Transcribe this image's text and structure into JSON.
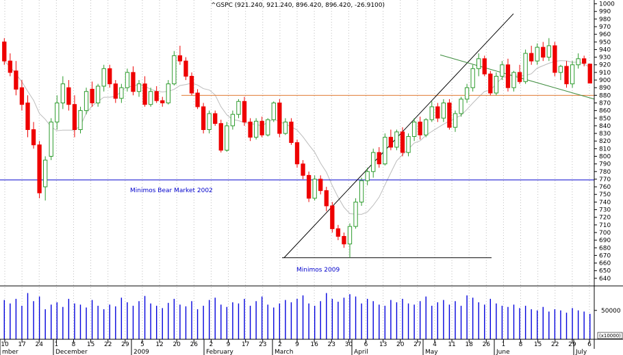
{
  "chart_data": {
    "type": "candlestick",
    "title": "^GSPC (921.240, 921.240, 896.420, 896.420, -26.9100)",
    "price_axis": {
      "ylim": [
        630,
        1005
      ],
      "ticks": [
        640,
        650,
        660,
        670,
        680,
        690,
        700,
        710,
        720,
        730,
        740,
        750,
        760,
        770,
        780,
        790,
        800,
        810,
        820,
        830,
        840,
        850,
        860,
        870,
        880,
        890,
        900,
        910,
        920,
        930,
        940,
        950,
        960,
        970,
        980,
        990,
        1000
      ]
    },
    "volume_axis": {
      "ylim": [
        0,
        90000
      ],
      "tick_labels": [
        "50000"
      ],
      "unit_label": "(x10000)"
    },
    "x_tick_labels": [
      "10",
      "17",
      "24",
      "1",
      "8",
      "15",
      "22",
      "29",
      "5",
      "12",
      "20",
      "26",
      "2",
      "9",
      "17",
      "23",
      "2",
      "9",
      "16",
      "23",
      "30",
      "6",
      "13",
      "20",
      "27",
      "4",
      "11",
      "18",
      "26",
      "1",
      "8",
      "15",
      "22",
      "29",
      "6"
    ],
    "month_labels": [
      "mber",
      "December",
      "2009",
      "February",
      "March",
      "April",
      "May",
      "June",
      "July"
    ],
    "colors": {
      "up": "#2a9a2a",
      "down": "#ee0000",
      "moving_average": "#bbbbbb",
      "volume": "#0000dd"
    },
    "horizontal_lines": [
      {
        "value": 769,
        "color": "#0000cc",
        "label": "Minimos Bear Market 2002"
      },
      {
        "value": 880,
        "color": "#e07830",
        "label": ""
      },
      {
        "value": 667,
        "color": "#000000",
        "label": "Minimos 2009"
      }
    ],
    "trendlines": [
      {
        "color": "#000000",
        "from": {
          "bar": 0.655,
          "value": 667
        },
        "to": {
          "bar": 1.0,
          "value": 987
        }
      },
      {
        "color": "#3a8a3a",
        "from": {
          "bar": 0.0,
          "value": 933
        },
        "to": {
          "bar": 1.0,
          "value": 875
        }
      }
    ],
    "candles": [
      {
        "o": 950,
        "h": 955,
        "l": 920,
        "c": 925
      },
      {
        "o": 925,
        "h": 935,
        "l": 905,
        "c": 910
      },
      {
        "o": 912,
        "h": 925,
        "l": 880,
        "c": 888
      },
      {
        "o": 890,
        "h": 900,
        "l": 860,
        "c": 868
      },
      {
        "o": 870,
        "h": 880,
        "l": 825,
        "c": 835
      },
      {
        "o": 835,
        "h": 845,
        "l": 810,
        "c": 815
      },
      {
        "o": 815,
        "h": 820,
        "l": 745,
        "c": 752
      },
      {
        "o": 760,
        "h": 800,
        "l": 742,
        "c": 795
      },
      {
        "o": 800,
        "h": 850,
        "l": 795,
        "c": 845
      },
      {
        "o": 845,
        "h": 880,
        "l": 835,
        "c": 870
      },
      {
        "o": 870,
        "h": 905,
        "l": 862,
        "c": 895
      },
      {
        "o": 890,
        "h": 900,
        "l": 860,
        "c": 868
      },
      {
        "o": 868,
        "h": 880,
        "l": 825,
        "c": 835
      },
      {
        "o": 835,
        "h": 865,
        "l": 830,
        "c": 860
      },
      {
        "o": 860,
        "h": 890,
        "l": 855,
        "c": 885
      },
      {
        "o": 888,
        "h": 898,
        "l": 865,
        "c": 870
      },
      {
        "o": 870,
        "h": 895,
        "l": 865,
        "c": 892
      },
      {
        "o": 892,
        "h": 920,
        "l": 885,
        "c": 915
      },
      {
        "o": 915,
        "h": 920,
        "l": 890,
        "c": 895
      },
      {
        "o": 895,
        "h": 900,
        "l": 870,
        "c": 876
      },
      {
        "o": 876,
        "h": 895,
        "l": 870,
        "c": 890
      },
      {
        "o": 890,
        "h": 915,
        "l": 885,
        "c": 910
      },
      {
        "o": 910,
        "h": 918,
        "l": 880,
        "c": 885
      },
      {
        "o": 885,
        "h": 900,
        "l": 878,
        "c": 895
      },
      {
        "o": 895,
        "h": 905,
        "l": 865,
        "c": 868
      },
      {
        "o": 868,
        "h": 890,
        "l": 865,
        "c": 885
      },
      {
        "o": 885,
        "h": 892,
        "l": 870,
        "c": 873
      },
      {
        "o": 873,
        "h": 878,
        "l": 865,
        "c": 870
      },
      {
        "o": 870,
        "h": 900,
        "l": 868,
        "c": 895
      },
      {
        "o": 895,
        "h": 938,
        "l": 893,
        "c": 932
      },
      {
        "o": 932,
        "h": 945,
        "l": 920,
        "c": 925
      },
      {
        "o": 925,
        "h": 930,
        "l": 900,
        "c": 905
      },
      {
        "o": 905,
        "h": 910,
        "l": 880,
        "c": 883
      },
      {
        "o": 883,
        "h": 888,
        "l": 862,
        "c": 865
      },
      {
        "o": 865,
        "h": 870,
        "l": 830,
        "c": 835
      },
      {
        "o": 835,
        "h": 860,
        "l": 830,
        "c": 856
      },
      {
        "o": 856,
        "h": 860,
        "l": 840,
        "c": 843
      },
      {
        "o": 843,
        "h": 848,
        "l": 805,
        "c": 808
      },
      {
        "o": 808,
        "h": 845,
        "l": 806,
        "c": 840
      },
      {
        "o": 840,
        "h": 860,
        "l": 835,
        "c": 855
      },
      {
        "o": 855,
        "h": 875,
        "l": 850,
        "c": 872
      },
      {
        "o": 872,
        "h": 878,
        "l": 840,
        "c": 845
      },
      {
        "o": 845,
        "h": 850,
        "l": 820,
        "c": 825
      },
      {
        "o": 825,
        "h": 850,
        "l": 822,
        "c": 846
      },
      {
        "o": 846,
        "h": 852,
        "l": 825,
        "c": 828
      },
      {
        "o": 828,
        "h": 850,
        "l": 826,
        "c": 848
      },
      {
        "o": 848,
        "h": 872,
        "l": 845,
        "c": 870
      },
      {
        "o": 870,
        "h": 875,
        "l": 825,
        "c": 830
      },
      {
        "o": 830,
        "h": 850,
        "l": 828,
        "c": 845
      },
      {
        "o": 845,
        "h": 850,
        "l": 815,
        "c": 818
      },
      {
        "o": 818,
        "h": 822,
        "l": 785,
        "c": 790
      },
      {
        "o": 790,
        "h": 795,
        "l": 770,
        "c": 775
      },
      {
        "o": 775,
        "h": 780,
        "l": 740,
        "c": 745
      },
      {
        "o": 745,
        "h": 775,
        "l": 742,
        "c": 770
      },
      {
        "o": 770,
        "h": 775,
        "l": 750,
        "c": 755
      },
      {
        "o": 755,
        "h": 760,
        "l": 728,
        "c": 735
      },
      {
        "o": 735,
        "h": 740,
        "l": 700,
        "c": 705
      },
      {
        "o": 705,
        "h": 710,
        "l": 690,
        "c": 695
      },
      {
        "o": 695,
        "h": 700,
        "l": 680,
        "c": 685
      },
      {
        "o": 685,
        "h": 712,
        "l": 667,
        "c": 708
      },
      {
        "o": 708,
        "h": 745,
        "l": 705,
        "c": 740
      },
      {
        "o": 740,
        "h": 772,
        "l": 735,
        "c": 768
      },
      {
        "o": 768,
        "h": 785,
        "l": 762,
        "c": 780
      },
      {
        "o": 780,
        "h": 810,
        "l": 772,
        "c": 805
      },
      {
        "o": 805,
        "h": 812,
        "l": 785,
        "c": 790
      },
      {
        "o": 790,
        "h": 830,
        "l": 788,
        "c": 825
      },
      {
        "o": 825,
        "h": 835,
        "l": 808,
        "c": 812
      },
      {
        "o": 812,
        "h": 835,
        "l": 808,
        "c": 832
      },
      {
        "o": 832,
        "h": 838,
        "l": 800,
        "c": 805
      },
      {
        "o": 805,
        "h": 830,
        "l": 800,
        "c": 826
      },
      {
        "o": 826,
        "h": 850,
        "l": 820,
        "c": 845
      },
      {
        "o": 845,
        "h": 852,
        "l": 822,
        "c": 828
      },
      {
        "o": 828,
        "h": 850,
        "l": 825,
        "c": 848
      },
      {
        "o": 848,
        "h": 872,
        "l": 845,
        "c": 865
      },
      {
        "o": 865,
        "h": 870,
        "l": 845,
        "c": 850
      },
      {
        "o": 850,
        "h": 875,
        "l": 845,
        "c": 870
      },
      {
        "o": 870,
        "h": 875,
        "l": 835,
        "c": 838
      },
      {
        "o": 838,
        "h": 860,
        "l": 832,
        "c": 856
      },
      {
        "o": 856,
        "h": 878,
        "l": 852,
        "c": 875
      },
      {
        "o": 875,
        "h": 895,
        "l": 870,
        "c": 890
      },
      {
        "o": 890,
        "h": 920,
        "l": 885,
        "c": 915
      },
      {
        "o": 915,
        "h": 935,
        "l": 905,
        "c": 928
      },
      {
        "o": 928,
        "h": 932,
        "l": 905,
        "c": 908
      },
      {
        "o": 908,
        "h": 912,
        "l": 880,
        "c": 883
      },
      {
        "o": 883,
        "h": 910,
        "l": 880,
        "c": 905
      },
      {
        "o": 905,
        "h": 925,
        "l": 900,
        "c": 920
      },
      {
        "o": 920,
        "h": 928,
        "l": 885,
        "c": 890
      },
      {
        "o": 890,
        "h": 912,
        "l": 885,
        "c": 910
      },
      {
        "o": 910,
        "h": 920,
        "l": 895,
        "c": 898
      },
      {
        "o": 898,
        "h": 940,
        "l": 895,
        "c": 935
      },
      {
        "o": 935,
        "h": 945,
        "l": 920,
        "c": 925
      },
      {
        "o": 925,
        "h": 948,
        "l": 920,
        "c": 943
      },
      {
        "o": 943,
        "h": 950,
        "l": 925,
        "c": 930
      },
      {
        "o": 930,
        "h": 955,
        "l": 925,
        "c": 945
      },
      {
        "o": 945,
        "h": 950,
        "l": 905,
        "c": 910
      },
      {
        "o": 910,
        "h": 920,
        "l": 900,
        "c": 918
      },
      {
        "o": 918,
        "h": 925,
        "l": 890,
        "c": 895
      },
      {
        "o": 895,
        "h": 925,
        "l": 890,
        "c": 920
      },
      {
        "o": 920,
        "h": 935,
        "l": 915,
        "c": 928
      },
      {
        "o": 928,
        "h": 932,
        "l": 918,
        "c": 922
      },
      {
        "o": 921,
        "h": 921,
        "l": 896,
        "c": 896
      }
    ],
    "volumes": [
      68000,
      62000,
      70000,
      58000,
      80000,
      66000,
      74000,
      52000,
      60000,
      64000,
      56000,
      70000,
      62000,
      60000,
      55000,
      68000,
      58000,
      52000,
      60000,
      57000,
      72000,
      64000,
      58000,
      66000,
      75000,
      62000,
      58000,
      54000,
      63000,
      70000,
      60000,
      57000,
      66000,
      52000,
      58000,
      68000,
      72000,
      60000,
      56000,
      64000,
      62000,
      70000,
      58000,
      66000,
      74000,
      60000,
      55000,
      62000,
      68000,
      64000,
      70000,
      76000,
      62000,
      58000,
      66000,
      80000,
      70000,
      65000,
      72000,
      78000,
      74000,
      62000,
      70000,
      66000,
      60000,
      58000,
      68000,
      64000,
      70000,
      62000,
      60000,
      66000,
      74000,
      58000,
      64000,
      68000,
      60000,
      66000,
      58000,
      76000,
      72000,
      64000,
      60000,
      70000,
      62000,
      58000,
      56000,
      60000,
      54000,
      58000,
      52000,
      50000,
      56000,
      48000,
      52000,
      50000,
      46000,
      54000,
      50000,
      48000,
      44000
    ]
  }
}
